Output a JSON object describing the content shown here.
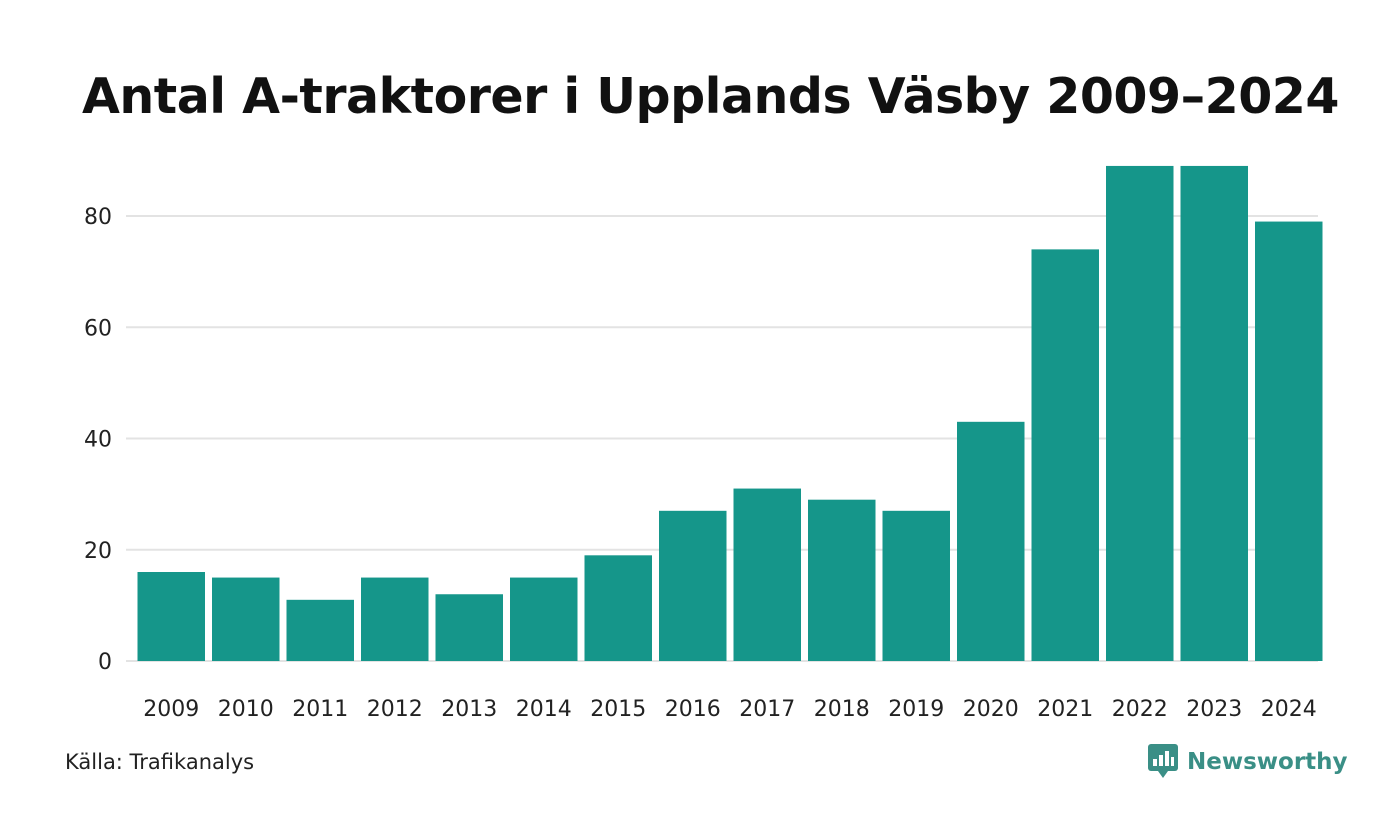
{
  "chart_data": {
    "type": "bar",
    "title": "Antal A-traktorer i Upplands Väsby 2009–2024",
    "categories": [
      "2009",
      "2010",
      "2011",
      "2012",
      "2013",
      "2014",
      "2015",
      "2016",
      "2017",
      "2018",
      "2019",
      "2020",
      "2021",
      "2022",
      "2023",
      "2024"
    ],
    "values": [
      16,
      15,
      11,
      15,
      12,
      15,
      19,
      27,
      31,
      29,
      27,
      43,
      74,
      89,
      89,
      79
    ],
    "ylim": [
      0,
      90
    ],
    "yticks": [
      0,
      20,
      40,
      60,
      80
    ],
    "xlabel": "",
    "ylabel": "",
    "grid": true,
    "bar_color": "#15968a"
  },
  "footer": {
    "source": "Källa: Trafikanalys",
    "brand": "Newsworthy",
    "brand_color": "#3a8f86",
    "brand_icon": "newsworthy-logo-icon"
  }
}
